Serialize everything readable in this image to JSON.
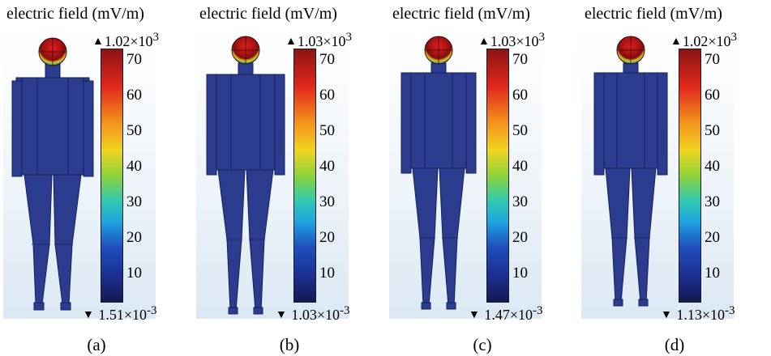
{
  "panels": [
    {
      "title": "electric field (mV/m)",
      "max_label": "1.02×10",
      "max_exp": "3",
      "min_label": "1.51×10",
      "min_exp": "-3",
      "ticks": [
        "70",
        "60",
        "50",
        "40",
        "30",
        "20",
        "10"
      ],
      "caption": "(a)"
    },
    {
      "title": "electric field (mV/m)",
      "max_label": "1.03×10",
      "max_exp": "3",
      "min_label": "1.03×10",
      "min_exp": "-3",
      "ticks": [
        "70",
        "60",
        "50",
        "40",
        "30",
        "20",
        "10"
      ],
      "caption": "(b)"
    },
    {
      "title": "electric field (mV/m)",
      "max_label": "1.03×10",
      "max_exp": "3",
      "min_label": "1.47×10",
      "min_exp": "-3",
      "ticks": [
        "70",
        "60",
        "50",
        "40",
        "30",
        "20",
        "10"
      ],
      "caption": "(c)"
    },
    {
      "title": "electric field (mV/m)",
      "max_label": "1.02×10",
      "max_exp": "3",
      "min_label": "1.13×10",
      "min_exp": "-3",
      "ticks": [
        "70",
        "60",
        "50",
        "40",
        "30",
        "20",
        "10"
      ],
      "caption": "(d)"
    }
  ],
  "colors": {
    "body": "#2c3c8e",
    "body_edge": "#16205a",
    "head_hot": "#c01818",
    "colorbar_max": "#8a1414",
    "colorbar_min": "#141a4e"
  }
}
